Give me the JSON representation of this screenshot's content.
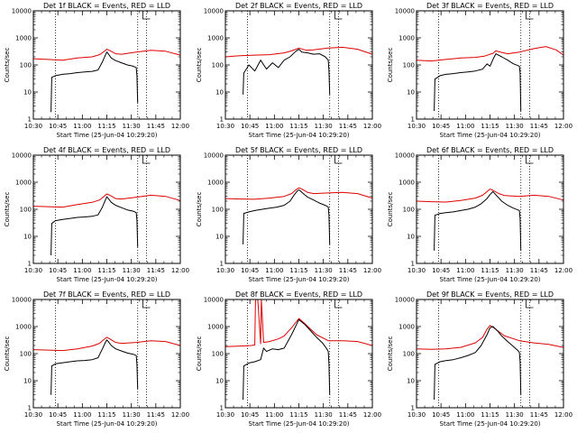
{
  "colors": {
    "events": "#000000",
    "lld": "#e00000",
    "axes": "#000000"
  },
  "chart_data": [
    {
      "type": "line",
      "detector": "1f",
      "title": "Det 1f BLACK = Events, RED = LLD",
      "xlabel": "Start Time (25-Jun-04 10:29:20)",
      "ylabel": "Counts/sec",
      "xlim": [
        0,
        100
      ],
      "ylim": [
        1,
        10000
      ],
      "yscale": "log",
      "x_ticks": [
        "10:30",
        "10:45",
        "11:00",
        "11:15",
        "11:30",
        "11:45",
        "12:00"
      ],
      "y_ticks": [
        "1",
        "10",
        "100",
        "1000",
        "10000"
      ],
      "markers": [
        15,
        71,
        77
      ],
      "series": [
        {
          "name": "Events",
          "color": "#000000",
          "x": [
            12,
            12.5,
            15,
            20,
            25,
            30,
            35,
            40,
            44,
            47,
            49,
            50,
            51,
            53,
            56,
            60,
            64,
            68,
            70,
            70.5,
            71
          ],
          "y": [
            1.8,
            35,
            40,
            45,
            48,
            52,
            55,
            58,
            65,
            130,
            230,
            300,
            260,
            180,
            145,
            120,
            100,
            90,
            80,
            40,
            4
          ]
        },
        {
          "name": "LLD",
          "color": "#e00000",
          "x": [
            0,
            10,
            20,
            30,
            40,
            45,
            48,
            50,
            52,
            56,
            60,
            70,
            80,
            90,
            100
          ],
          "y": [
            170,
            160,
            150,
            180,
            200,
            240,
            310,
            380,
            340,
            260,
            250,
            300,
            350,
            320,
            230
          ]
        }
      ]
    },
    {
      "type": "line",
      "detector": "2f",
      "title": "Det 2f BLACK = Events, RED = LLD",
      "xlabel": "Start Time (25-Jun-04 10:29:20)",
      "ylabel": "Counts/sec",
      "xlim": [
        0,
        100
      ],
      "ylim": [
        1,
        10000
      ],
      "yscale": "log",
      "x_ticks": [
        "10:30",
        "10:45",
        "11:00",
        "11:15",
        "11:30",
        "11:45",
        "12:00"
      ],
      "y_ticks": [
        "1",
        "10",
        "100",
        "1000",
        "10000"
      ],
      "markers": [
        15,
        71,
        77
      ],
      "series": [
        {
          "name": "Events",
          "color": "#000000",
          "x": [
            12,
            12.5,
            16,
            20,
            24,
            28,
            32,
            36,
            40,
            44,
            48,
            50,
            52,
            56,
            60,
            64,
            68,
            70,
            70.5,
            71
          ],
          "y": [
            8,
            50,
            100,
            60,
            150,
            70,
            120,
            80,
            150,
            200,
            320,
            380,
            300,
            280,
            250,
            260,
            200,
            150,
            60,
            8
          ]
        },
        {
          "name": "LLD",
          "color": "#e00000",
          "x": [
            0,
            10,
            20,
            30,
            40,
            45,
            50,
            55,
            60,
            70,
            80,
            90,
            100
          ],
          "y": [
            200,
            220,
            230,
            240,
            280,
            330,
            420,
            350,
            360,
            420,
            450,
            380,
            250
          ]
        }
      ]
    },
    {
      "type": "line",
      "detector": "3f",
      "title": "Det 3f BLACK = Events, RED = LLD",
      "xlabel": "Start Time (25-Jun-04 10:29:20)",
      "ylabel": "Counts/sec",
      "xlim": [
        0,
        100
      ],
      "ylim": [
        1,
        10000
      ],
      "yscale": "log",
      "x_ticks": [
        "10:30",
        "10:45",
        "11:00",
        "11:15",
        "11:30",
        "11:45",
        "12:00"
      ],
      "y_ticks": [
        "1",
        "10",
        "100",
        "1000",
        "10000"
      ],
      "markers": [
        15,
        71,
        77
      ],
      "series": [
        {
          "name": "Events",
          "color": "#000000",
          "x": [
            12,
            12.5,
            16,
            20,
            25,
            30,
            35,
            40,
            45,
            48,
            50,
            52,
            54,
            58,
            62,
            66,
            69,
            70,
            70.5,
            71
          ],
          "y": [
            2,
            30,
            40,
            45,
            48,
            52,
            55,
            60,
            70,
            110,
            90,
            160,
            260,
            200,
            150,
            110,
            95,
            90,
            50,
            2
          ]
        },
        {
          "name": "LLD",
          "color": "#e00000",
          "x": [
            0,
            10,
            20,
            30,
            40,
            46,
            52,
            54,
            58,
            62,
            70,
            80,
            88,
            95,
            100
          ],
          "y": [
            150,
            140,
            160,
            180,
            190,
            210,
            270,
            330,
            290,
            260,
            300,
            400,
            480,
            360,
            230
          ]
        }
      ]
    },
    {
      "type": "line",
      "detector": "4f",
      "title": "Det 4f BLACK = Events, RED = LLD",
      "xlabel": "Start Time (25-Jun-04 10:29:20)",
      "ylabel": "Counts/sec",
      "xlim": [
        0,
        100
      ],
      "ylim": [
        1,
        10000
      ],
      "yscale": "log",
      "x_ticks": [
        "10:30",
        "10:45",
        "11:00",
        "11:15",
        "11:30",
        "11:45",
        "12:00"
      ],
      "y_ticks": [
        "1",
        "10",
        "100",
        "1000",
        "10000"
      ],
      "markers": [
        15,
        71,
        77
      ],
      "series": [
        {
          "name": "Events",
          "color": "#000000",
          "x": [
            12,
            12.5,
            15,
            20,
            25,
            30,
            35,
            40,
            44,
            47,
            49,
            50,
            51,
            53,
            56,
            60,
            64,
            68,
            70,
            70.5,
            71
          ],
          "y": [
            2,
            30,
            38,
            42,
            46,
            50,
            52,
            55,
            62,
            120,
            220,
            290,
            250,
            180,
            140,
            115,
            95,
            85,
            75,
            40,
            4
          ]
        },
        {
          "name": "LLD",
          "color": "#e00000",
          "x": [
            0,
            10,
            20,
            30,
            40,
            45,
            48,
            50,
            52,
            56,
            60,
            70,
            80,
            90,
            100
          ],
          "y": [
            130,
            125,
            120,
            150,
            180,
            220,
            300,
            370,
            330,
            250,
            240,
            280,
            330,
            300,
            210
          ]
        }
      ]
    },
    {
      "type": "line",
      "detector": "5f",
      "title": "Det 5f BLACK = Events, RED = LLD",
      "xlabel": "Start Time (25-Jun-04 10:29:20)",
      "ylabel": "Counts/sec",
      "xlim": [
        0,
        100
      ],
      "ylim": [
        1,
        10000
      ],
      "yscale": "log",
      "x_ticks": [
        "10:30",
        "10:45",
        "11:00",
        "11:15",
        "11:30",
        "11:45",
        "12:00"
      ],
      "y_ticks": [
        "1",
        "10",
        "100",
        "1000",
        "10000"
      ],
      "markers": [
        15,
        71,
        77
      ],
      "series": [
        {
          "name": "Events",
          "color": "#000000",
          "x": [
            12,
            12.5,
            16,
            20,
            25,
            30,
            35,
            40,
            44,
            47,
            49,
            50,
            51,
            53,
            56,
            60,
            64,
            68,
            70,
            70.5,
            71
          ],
          "y": [
            5,
            70,
            80,
            90,
            100,
            110,
            120,
            140,
            200,
            350,
            480,
            520,
            480,
            380,
            280,
            220,
            170,
            140,
            120,
            60,
            5
          ]
        },
        {
          "name": "LLD",
          "color": "#e00000",
          "x": [
            0,
            10,
            20,
            30,
            40,
            45,
            48,
            50,
            52,
            56,
            60,
            70,
            80,
            90,
            100
          ],
          "y": [
            250,
            240,
            235,
            260,
            300,
            380,
            520,
            620,
            560,
            420,
            380,
            400,
            420,
            380,
            260
          ]
        }
      ]
    },
    {
      "type": "line",
      "detector": "6f",
      "title": "Det 6f BLACK = Events, RED = LLD",
      "xlabel": "Start Time (25-Jun-04 10:29:20)",
      "ylabel": "Counts/sec",
      "xlim": [
        0,
        100
      ],
      "ylim": [
        1,
        10000
      ],
      "yscale": "log",
      "x_ticks": [
        "10:30",
        "10:45",
        "11:00",
        "11:15",
        "11:30",
        "11:45",
        "12:00"
      ],
      "y_ticks": [
        "1",
        "10",
        "100",
        "1000",
        "10000"
      ],
      "markers": [
        15,
        71,
        77
      ],
      "series": [
        {
          "name": "Events",
          "color": "#000000",
          "x": [
            12,
            12.5,
            16,
            20,
            25,
            30,
            35,
            40,
            44,
            48,
            50,
            52,
            55,
            58,
            62,
            66,
            69,
            70,
            70.5,
            71
          ],
          "y": [
            3,
            60,
            70,
            75,
            80,
            90,
            100,
            120,
            160,
            250,
            350,
            450,
            300,
            200,
            140,
            110,
            95,
            90,
            45,
            3
          ]
        },
        {
          "name": "LLD",
          "color": "#e00000",
          "x": [
            0,
            10,
            20,
            30,
            40,
            45,
            48,
            50,
            52,
            56,
            60,
            70,
            80,
            90,
            100
          ],
          "y": [
            200,
            190,
            185,
            210,
            260,
            330,
            450,
            560,
            500,
            380,
            320,
            300,
            330,
            300,
            220
          ]
        }
      ]
    },
    {
      "type": "line",
      "detector": "7f",
      "title": "Det 7f BLACK = Events, RED = LLD",
      "xlabel": "Start Time (25-Jun-04 10:29:20)",
      "ylabel": "Counts/sec",
      "xlim": [
        0,
        100
      ],
      "ylim": [
        1,
        10000
      ],
      "yscale": "log",
      "x_ticks": [
        "10:30",
        "10:45",
        "11:00",
        "11:15",
        "11:30",
        "11:45",
        "12:00"
      ],
      "y_ticks": [
        "1",
        "10",
        "100",
        "1000",
        "10000"
      ],
      "markers": [
        15,
        71,
        77
      ],
      "series": [
        {
          "name": "Events",
          "color": "#000000",
          "x": [
            12,
            12.5,
            15,
            20,
            25,
            30,
            35,
            40,
            44,
            47,
            49,
            50,
            51,
            53,
            56,
            60,
            64,
            68,
            70,
            70.5,
            71
          ],
          "y": [
            3,
            35,
            42,
            46,
            50,
            54,
            56,
            60,
            70,
            150,
            260,
            320,
            280,
            200,
            150,
            125,
            105,
            95,
            85,
            40,
            5
          ]
        },
        {
          "name": "LLD",
          "color": "#e00000",
          "x": [
            0,
            10,
            20,
            30,
            40,
            45,
            48,
            50,
            52,
            56,
            60,
            70,
            80,
            90,
            100
          ],
          "y": [
            140,
            135,
            130,
            150,
            190,
            240,
            330,
            400,
            350,
            260,
            240,
            260,
            300,
            280,
            200
          ]
        }
      ]
    },
    {
      "type": "line",
      "detector": "8f",
      "title": "Det 8f BLACK = Events, RED = LLD",
      "xlabel": "Start Time (25-Jun-04 10:29:20)",
      "ylabel": "Counts/sec",
      "xlim": [
        0,
        100
      ],
      "ylim": [
        1,
        10000
      ],
      "yscale": "log",
      "x_ticks": [
        "10:30",
        "10:45",
        "11:00",
        "11:15",
        "11:30",
        "11:45",
        "12:00"
      ],
      "y_ticks": [
        "1",
        "10",
        "100",
        "1000",
        "10000"
      ],
      "markers": [
        15,
        71,
        77
      ],
      "series": [
        {
          "name": "Events",
          "color": "#000000",
          "x": [
            12,
            12.5,
            16,
            20,
            24,
            26,
            28,
            32,
            36,
            40,
            45,
            50,
            54,
            58,
            62,
            66,
            69,
            70,
            70.5,
            71
          ],
          "y": [
            2,
            35,
            45,
            50,
            60,
            160,
            120,
            150,
            140,
            160,
            500,
            1800,
            1200,
            700,
            400,
            250,
            150,
            120,
            40,
            3
          ]
        },
        {
          "name": "LLD",
          "color": "#e00000",
          "x": [
            0,
            10,
            18,
            20,
            20.5,
            22,
            24,
            24.5,
            26,
            30,
            36,
            40,
            45,
            50,
            54,
            58,
            62,
            70,
            80,
            90,
            100
          ],
          "y": [
            180,
            190,
            200,
            210,
            10000,
            10000,
            230,
            10000,
            260,
            280,
            350,
            450,
            900,
            2000,
            1300,
            800,
            500,
            300,
            300,
            280,
            200
          ]
        }
      ]
    },
    {
      "type": "line",
      "detector": "9f",
      "title": "Det 9f BLACK = Events, RED = LLD",
      "xlabel": "Start Time (25-Jun-04 10:29:20)",
      "ylabel": "Counts/sec",
      "xlim": [
        0,
        100
      ],
      "ylim": [
        1,
        10000
      ],
      "yscale": "log",
      "x_ticks": [
        "10:30",
        "10:45",
        "11:00",
        "11:15",
        "11:30",
        "11:45",
        "12:00"
      ],
      "y_ticks": [
        "1",
        "10",
        "100",
        "1000",
        "10000"
      ],
      "markers": [
        15,
        71,
        77
      ],
      "series": [
        {
          "name": "Events",
          "color": "#000000",
          "x": [
            12,
            12.5,
            16,
            20,
            25,
            30,
            35,
            40,
            44,
            48,
            50,
            52,
            55,
            58,
            62,
            66,
            69,
            70,
            70.5,
            71
          ],
          "y": [
            2,
            40,
            50,
            55,
            60,
            70,
            85,
            110,
            200,
            500,
            900,
            1000,
            700,
            450,
            280,
            180,
            130,
            110,
            50,
            3
          ]
        },
        {
          "name": "LLD",
          "color": "#e00000",
          "x": [
            0,
            10,
            20,
            30,
            40,
            45,
            48,
            50,
            52,
            56,
            60,
            70,
            80,
            90,
            100
          ],
          "y": [
            150,
            145,
            150,
            170,
            250,
            400,
            800,
            1100,
            950,
            650,
            450,
            300,
            250,
            220,
            170
          ]
        }
      ]
    }
  ]
}
